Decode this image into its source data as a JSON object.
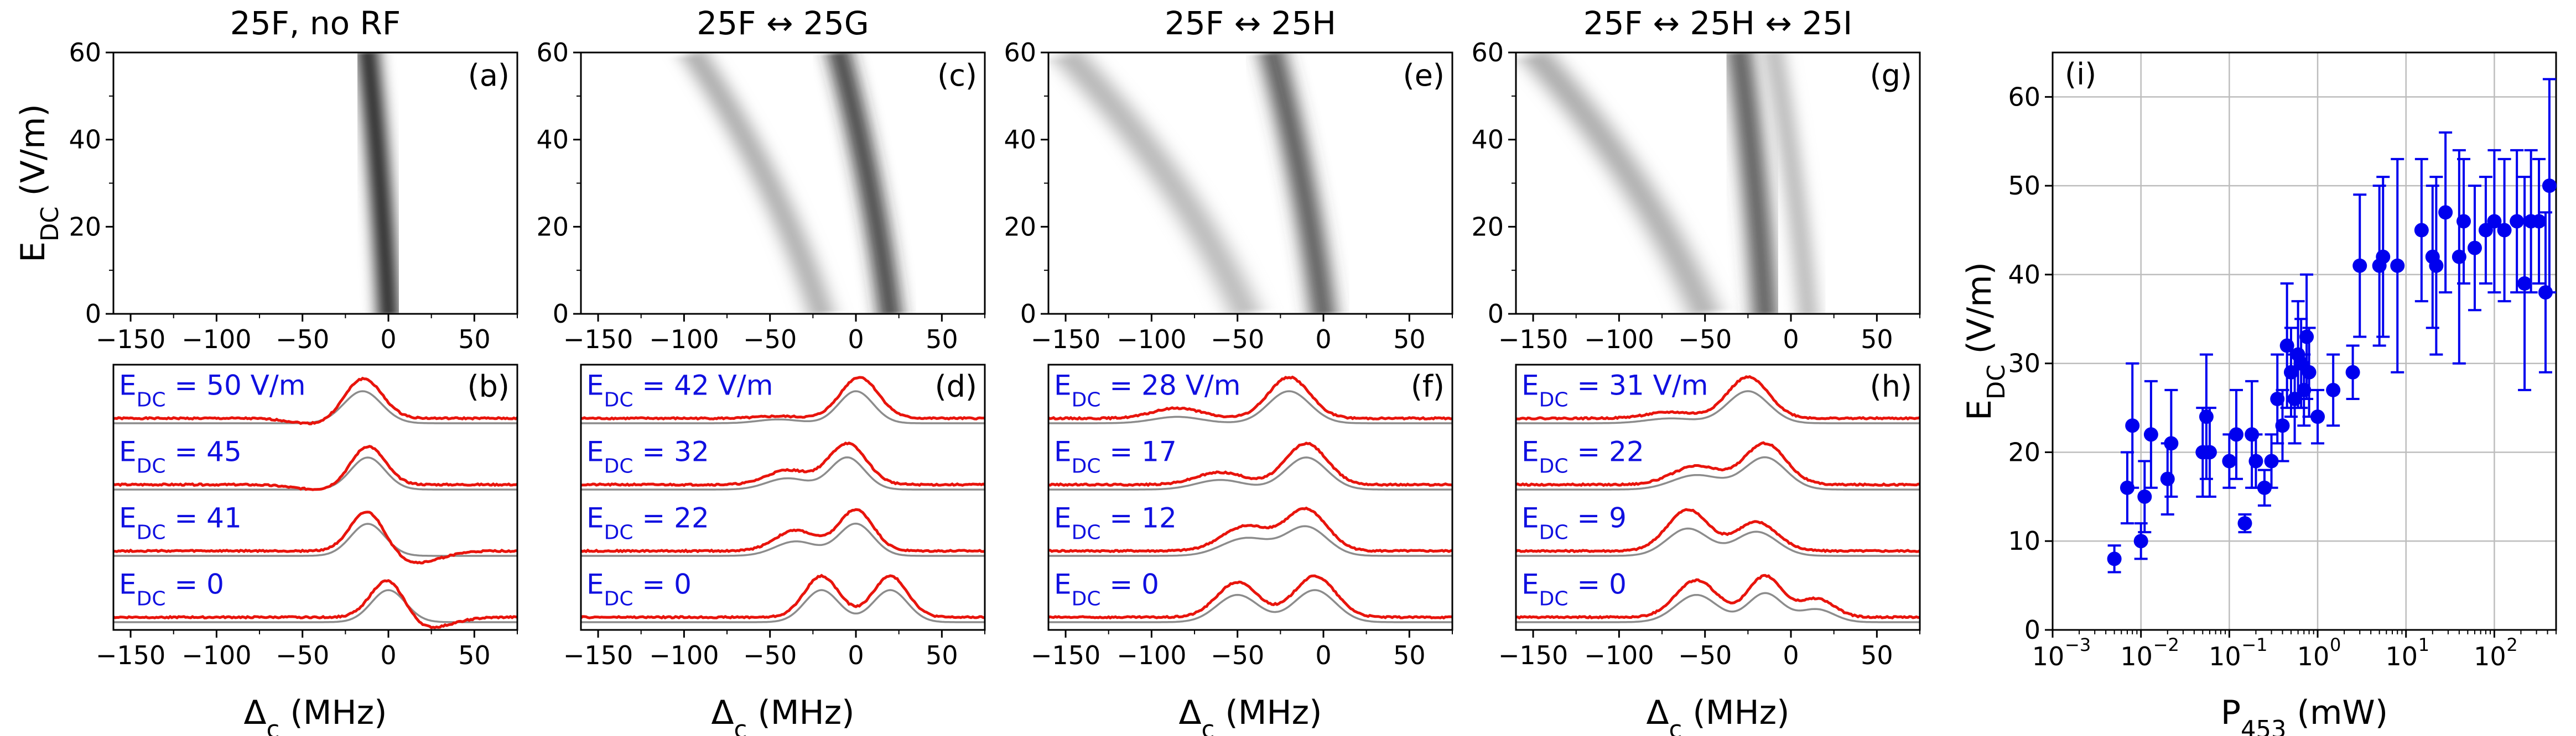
{
  "chart_data": [
    {
      "type": "heatmap",
      "panel_label": "(a)",
      "title": "25F, no RF",
      "xlabel": "",
      "ylabel": "E_DC (V/m)",
      "xlim": [
        -160,
        75
      ],
      "ylim": [
        0,
        60
      ],
      "xticks": [
        -150,
        -100,
        -50,
        0,
        50
      ],
      "yticks": [
        0,
        20,
        40,
        60
      ],
      "bands": [
        {
          "x_at_E0": 0,
          "x_at_E60": -12,
          "width_MHz": 10,
          "intensity": 1.0,
          "fade_below_E": 0
        }
      ]
    },
    {
      "type": "heatmap",
      "panel_label": "(c)",
      "title": "25F ↔ 25G",
      "xlim": [
        -160,
        75
      ],
      "ylim": [
        0,
        60
      ],
      "xticks": [
        -150,
        -100,
        -50,
        0,
        50
      ],
      "yticks": [
        0,
        20,
        40,
        60
      ],
      "bands": [
        {
          "x_at_E0": 20,
          "x_at_E60": -10,
          "width_MHz": 11,
          "intensity": 0.85,
          "fade_below_E": 0
        },
        {
          "x_at_E0": -20,
          "x_at_E60": -95,
          "width_MHz": 12,
          "intensity": 0.35,
          "fade_below_E": 0
        }
      ]
    },
    {
      "type": "heatmap",
      "panel_label": "(e)",
      "title": "25F ↔ 25H",
      "xlim": [
        -160,
        75
      ],
      "ylim": [
        0,
        60
      ],
      "xticks": [
        -150,
        -100,
        -50,
        0,
        50
      ],
      "yticks": [
        0,
        20,
        40,
        60
      ],
      "bands": [
        {
          "x_at_E0": 0,
          "x_at_E60": -30,
          "width_MHz": 12,
          "intensity": 0.75,
          "fade_below_E": 0
        },
        {
          "x_at_E0": -45,
          "x_at_E60": -150,
          "width_MHz": 14,
          "intensity": 0.3,
          "fade_below_E": 0
        }
      ]
    },
    {
      "type": "heatmap",
      "panel_label": "(g)",
      "title": "25F ↔ 25H ↔ 25I",
      "xlim": [
        -160,
        75
      ],
      "ylim": [
        0,
        60
      ],
      "xticks": [
        -150,
        -100,
        -50,
        0,
        50
      ],
      "yticks": [
        0,
        20,
        40,
        60
      ],
      "bands": [
        {
          "x_at_E0": -15,
          "x_at_E60": -30,
          "width_MHz": 12,
          "intensity": 0.75,
          "fade_below_E": 0
        },
        {
          "x_at_E0": -50,
          "x_at_E60": -150,
          "width_MHz": 14,
          "intensity": 0.35,
          "fade_below_E": 0
        },
        {
          "x_at_E0": 10,
          "x_at_E60": -10,
          "width_MHz": 10,
          "intensity": 0.3,
          "fade_below_E": 0
        }
      ]
    },
    {
      "type": "line",
      "panel_label": "(b)",
      "xlabel": "Δ_c (MHz)",
      "xlim": [
        -160,
        75
      ],
      "xticks": [
        -150,
        -100,
        -50,
        0,
        50
      ],
      "traces": [
        {
          "label": "E_DC = 50 V/m",
          "peaks": [
            [
              -15,
              1.0,
              11
            ]
          ],
          "theory": [
            [
              -15,
              1.0,
              11
            ]
          ],
          "dip": [
            [
              -40,
              -0.15,
              15
            ]
          ]
        },
        {
          "label": "E_DC = 45",
          "peaks": [
            [
              -12,
              0.95,
              10
            ]
          ],
          "theory": [
            [
              -12,
              1.0,
              10
            ]
          ],
          "dip": [
            [
              -40,
              -0.12,
              15
            ]
          ]
        },
        {
          "label": "E_DC = 41",
          "peaks": [
            [
              -12,
              1.0,
              10
            ]
          ],
          "theory": [
            [
              -12,
              1.0,
              10
            ]
          ],
          "dip": [
            [
              15,
              -0.3,
              15
            ]
          ]
        },
        {
          "label": "E_DC = 0",
          "peaks": [
            [
              0,
              1.0,
              10
            ]
          ],
          "theory": [
            [
              0,
              1.0,
              10
            ]
          ],
          "dip": [
            [
              20,
              -0.3,
              15
            ]
          ]
        }
      ]
    },
    {
      "type": "line",
      "panel_label": "(d)",
      "xlabel": "Δ_c (MHz)",
      "xlim": [
        -160,
        75
      ],
      "xticks": [
        -150,
        -100,
        -50,
        0,
        50
      ],
      "traces": [
        {
          "label": "E_DC = 42 V/m",
          "peaks": [
            [
              2,
              1.0,
              11
            ],
            [
              -45,
              0.05,
              12
            ]
          ],
          "theory": [
            [
              0,
              1.0,
              10
            ],
            [
              -45,
              0.12,
              12
            ]
          ],
          "dip": []
        },
        {
          "label": "E_DC = 32",
          "peaks": [
            [
              -5,
              1.0,
              11
            ],
            [
              -40,
              0.35,
              12
            ]
          ],
          "theory": [
            [
              -5,
              1.0,
              10
            ],
            [
              -40,
              0.35,
              12
            ]
          ],
          "dip": []
        },
        {
          "label": "E_DC = 22",
          "peaks": [
            [
              0,
              1.0,
              10
            ],
            [
              -35,
              0.5,
              12
            ]
          ],
          "theory": [
            [
              0,
              1.0,
              10
            ],
            [
              -35,
              0.45,
              12
            ]
          ],
          "dip": []
        },
        {
          "label": "E_DC = 0",
          "peaks": [
            [
              -20,
              1.0,
              10
            ],
            [
              20,
              1.0,
              10
            ]
          ],
          "theory": [
            [
              -20,
              1.0,
              10
            ],
            [
              20,
              1.0,
              10
            ]
          ],
          "dip": []
        }
      ]
    },
    {
      "type": "line",
      "panel_label": "(f)",
      "xlabel": "Δ_c (MHz)",
      "xlim": [
        -160,
        75
      ],
      "xticks": [
        -150,
        -100,
        -50,
        0,
        50
      ],
      "traces": [
        {
          "label": "E_DC = 28 V/m",
          "peaks": [
            [
              -20,
              1.0,
              12
            ],
            [
              -85,
              0.25,
              14
            ]
          ],
          "theory": [
            [
              -20,
              1.0,
              12
            ],
            [
              -85,
              0.2,
              14
            ]
          ],
          "dip": []
        },
        {
          "label": "E_DC = 17",
          "peaks": [
            [
              -10,
              1.0,
              12
            ],
            [
              -60,
              0.3,
              14
            ]
          ],
          "theory": [
            [
              -10,
              1.0,
              12
            ],
            [
              -60,
              0.3,
              14
            ]
          ],
          "dip": []
        },
        {
          "label": "E_DC = 12",
          "peaks": [
            [
              -10,
              1.0,
              12
            ],
            [
              -45,
              0.6,
              14
            ]
          ],
          "theory": [
            [
              -10,
              0.9,
              12
            ],
            [
              -45,
              0.55,
              14
            ]
          ],
          "dip": []
        },
        {
          "label": "E_DC = 0",
          "peaks": [
            [
              -50,
              0.85,
              12
            ],
            [
              -5,
              1.0,
              12
            ]
          ],
          "theory": [
            [
              -50,
              0.85,
              12
            ],
            [
              -5,
              1.0,
              12
            ]
          ],
          "dip": []
        }
      ]
    },
    {
      "type": "line",
      "panel_label": "(h)",
      "xlabel": "Δ_c (MHz)",
      "xlim": [
        -160,
        75
      ],
      "xticks": [
        -150,
        -100,
        -50,
        0,
        50
      ],
      "traces": [
        {
          "label": "E_DC = 31 V/m",
          "peaks": [
            [
              -25,
              1.0,
              12
            ],
            [
              -70,
              0.15,
              14
            ]
          ],
          "theory": [
            [
              -25,
              1.0,
              12
            ],
            [
              -70,
              0.15,
              14
            ]
          ],
          "dip": []
        },
        {
          "label": "E_DC = 22",
          "peaks": [
            [
              -15,
              1.0,
              12
            ],
            [
              -55,
              0.45,
              14
            ]
          ],
          "theory": [
            [
              -15,
              1.0,
              12
            ],
            [
              -55,
              0.45,
              14
            ]
          ],
          "dip": []
        },
        {
          "label": "E_DC = 9",
          "peaks": [
            [
              -60,
              1.0,
              12
            ],
            [
              -20,
              0.7,
              12
            ]
          ],
          "theory": [
            [
              -60,
              0.85,
              12
            ],
            [
              -20,
              0.75,
              12
            ]
          ],
          "dip": []
        },
        {
          "label": "E_DC = 0",
          "peaks": [
            [
              -55,
              0.9,
              12
            ],
            [
              -15,
              1.0,
              10
            ],
            [
              15,
              0.45,
              10
            ]
          ],
          "theory": [
            [
              -55,
              0.85,
              12
            ],
            [
              -15,
              0.9,
              10
            ],
            [
              15,
              0.4,
              10
            ]
          ],
          "dip": []
        }
      ]
    },
    {
      "type": "scatter",
      "panel_label": "(i)",
      "xlabel_main": "P",
      "xlabel_sub": "453",
      "xlabel_unit": " (mW)",
      "ylabel_main": "E",
      "ylabel_sub": "DC",
      "ylabel_unit": " (V/m)",
      "xscale": "log",
      "xlim": [
        0.001,
        500
      ],
      "ylim": [
        0,
        65
      ],
      "yticks": [
        0,
        10,
        20,
        30,
        40,
        50,
        60
      ],
      "xtick_exponents": [
        -3,
        -2,
        -1,
        0,
        1,
        2
      ],
      "points": [
        [
          0.005,
          8,
          1.5
        ],
        [
          0.007,
          16,
          4
        ],
        [
          0.008,
          23,
          7
        ],
        [
          0.01,
          10,
          2
        ],
        [
          0.011,
          15,
          4
        ],
        [
          0.013,
          22,
          6
        ],
        [
          0.02,
          17,
          4
        ],
        [
          0.022,
          21,
          6
        ],
        [
          0.05,
          20,
          5
        ],
        [
          0.055,
          24,
          7
        ],
        [
          0.06,
          20,
          5
        ],
        [
          0.1,
          19,
          3
        ],
        [
          0.12,
          22,
          5
        ],
        [
          0.15,
          12,
          1
        ],
        [
          0.18,
          22,
          6
        ],
        [
          0.2,
          19,
          3
        ],
        [
          0.25,
          16,
          2
        ],
        [
          0.3,
          19,
          3
        ],
        [
          0.35,
          26,
          5
        ],
        [
          0.4,
          23,
          4
        ],
        [
          0.45,
          32,
          7
        ],
        [
          0.5,
          29,
          5
        ],
        [
          0.55,
          26,
          5
        ],
        [
          0.6,
          31,
          6
        ],
        [
          0.65,
          30,
          5
        ],
        [
          0.7,
          27,
          4
        ],
        [
          0.75,
          33,
          7
        ],
        [
          0.8,
          29,
          5
        ],
        [
          1.0,
          24,
          3
        ],
        [
          1.5,
          27,
          4
        ],
        [
          2.5,
          29,
          3
        ],
        [
          3.0,
          41,
          8
        ],
        [
          5.0,
          41,
          9
        ],
        [
          5.5,
          42,
          9
        ],
        [
          8.0,
          41,
          12
        ],
        [
          15,
          45,
          8
        ],
        [
          20,
          42,
          8
        ],
        [
          22,
          41,
          10
        ],
        [
          28,
          47,
          9
        ],
        [
          40,
          42,
          12
        ],
        [
          45,
          46,
          7
        ],
        [
          60,
          43,
          7
        ],
        [
          80,
          45,
          6
        ],
        [
          100,
          46,
          8
        ],
        [
          130,
          45,
          8
        ],
        [
          180,
          46,
          8
        ],
        [
          220,
          39,
          12
        ],
        [
          260,
          46,
          8
        ],
        [
          320,
          46,
          7
        ],
        [
          380,
          38,
          9
        ],
        [
          420,
          50,
          12
        ]
      ]
    }
  ],
  "colors": {
    "data": "#e8140c",
    "theory": "#8c8c8c",
    "label_blue": "#1010e0",
    "marker": "#0000ee"
  }
}
